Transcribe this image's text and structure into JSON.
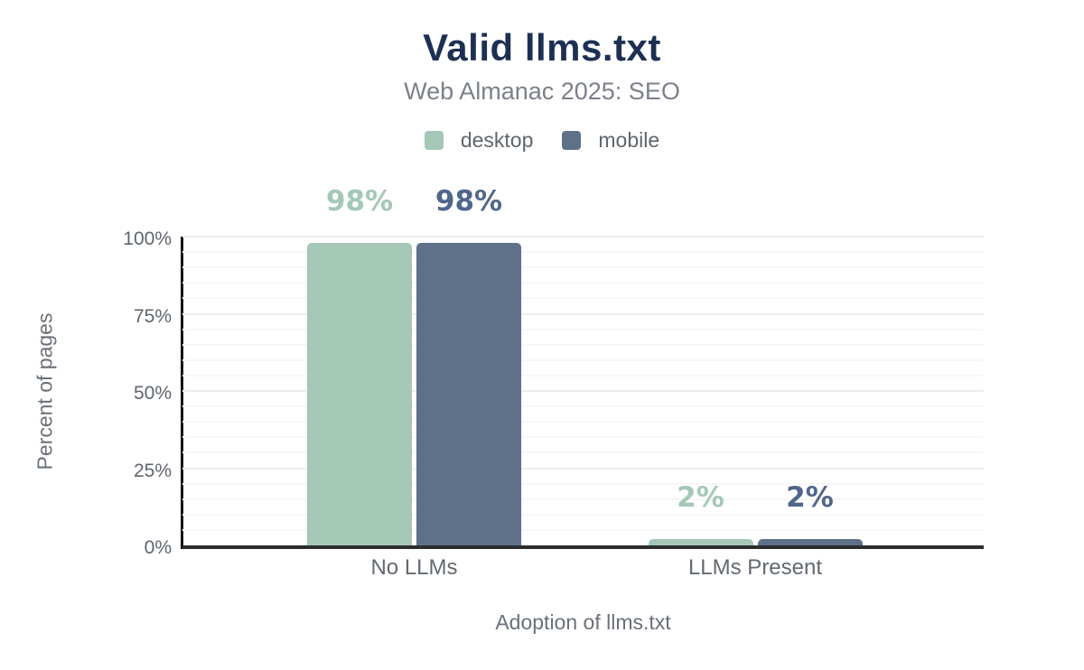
{
  "chart_data": {
    "type": "bar",
    "title": "Valid llms.txt",
    "subtitle": "Web Almanac 2025: SEO",
    "categories": [
      "No LLMs",
      "LLMs Present"
    ],
    "series": [
      {
        "name": "desktop",
        "values": [
          98,
          2
        ],
        "value_labels": [
          "98%",
          "2%"
        ],
        "color": "#a4c8b5",
        "label_color": "#a4c8b5"
      },
      {
        "name": "mobile",
        "values": [
          98,
          2
        ],
        "value_labels": [
          "98%",
          "2%"
        ],
        "color": "#5e7189",
        "label_color": "#50668c"
      }
    ],
    "xlabel": "Adoption of llms.txt",
    "ylabel": "Percent of pages",
    "ylim": [
      0,
      100
    ],
    "yticks": [
      {
        "value": 0,
        "label": "0%"
      },
      {
        "value": 25,
        "label": "25%"
      },
      {
        "value": 50,
        "label": "50%"
      },
      {
        "value": 75,
        "label": "75%"
      },
      {
        "value": 100,
        "label": "100%"
      }
    ],
    "grid": {
      "minor_step_percent": 5,
      "major_step_percent": 25,
      "horizontal": true
    },
    "legend_position": "top"
  },
  "colors": {
    "background": "#ffffff",
    "title_text": "#1d3054",
    "subtitle_text": "#7b8089",
    "axis_text": "#5f656d",
    "axis_title_text": "#6a7078",
    "grid_minor": "#f7f7f7",
    "grid_major": "#ededed",
    "axis_line": "#2d2d2d"
  }
}
